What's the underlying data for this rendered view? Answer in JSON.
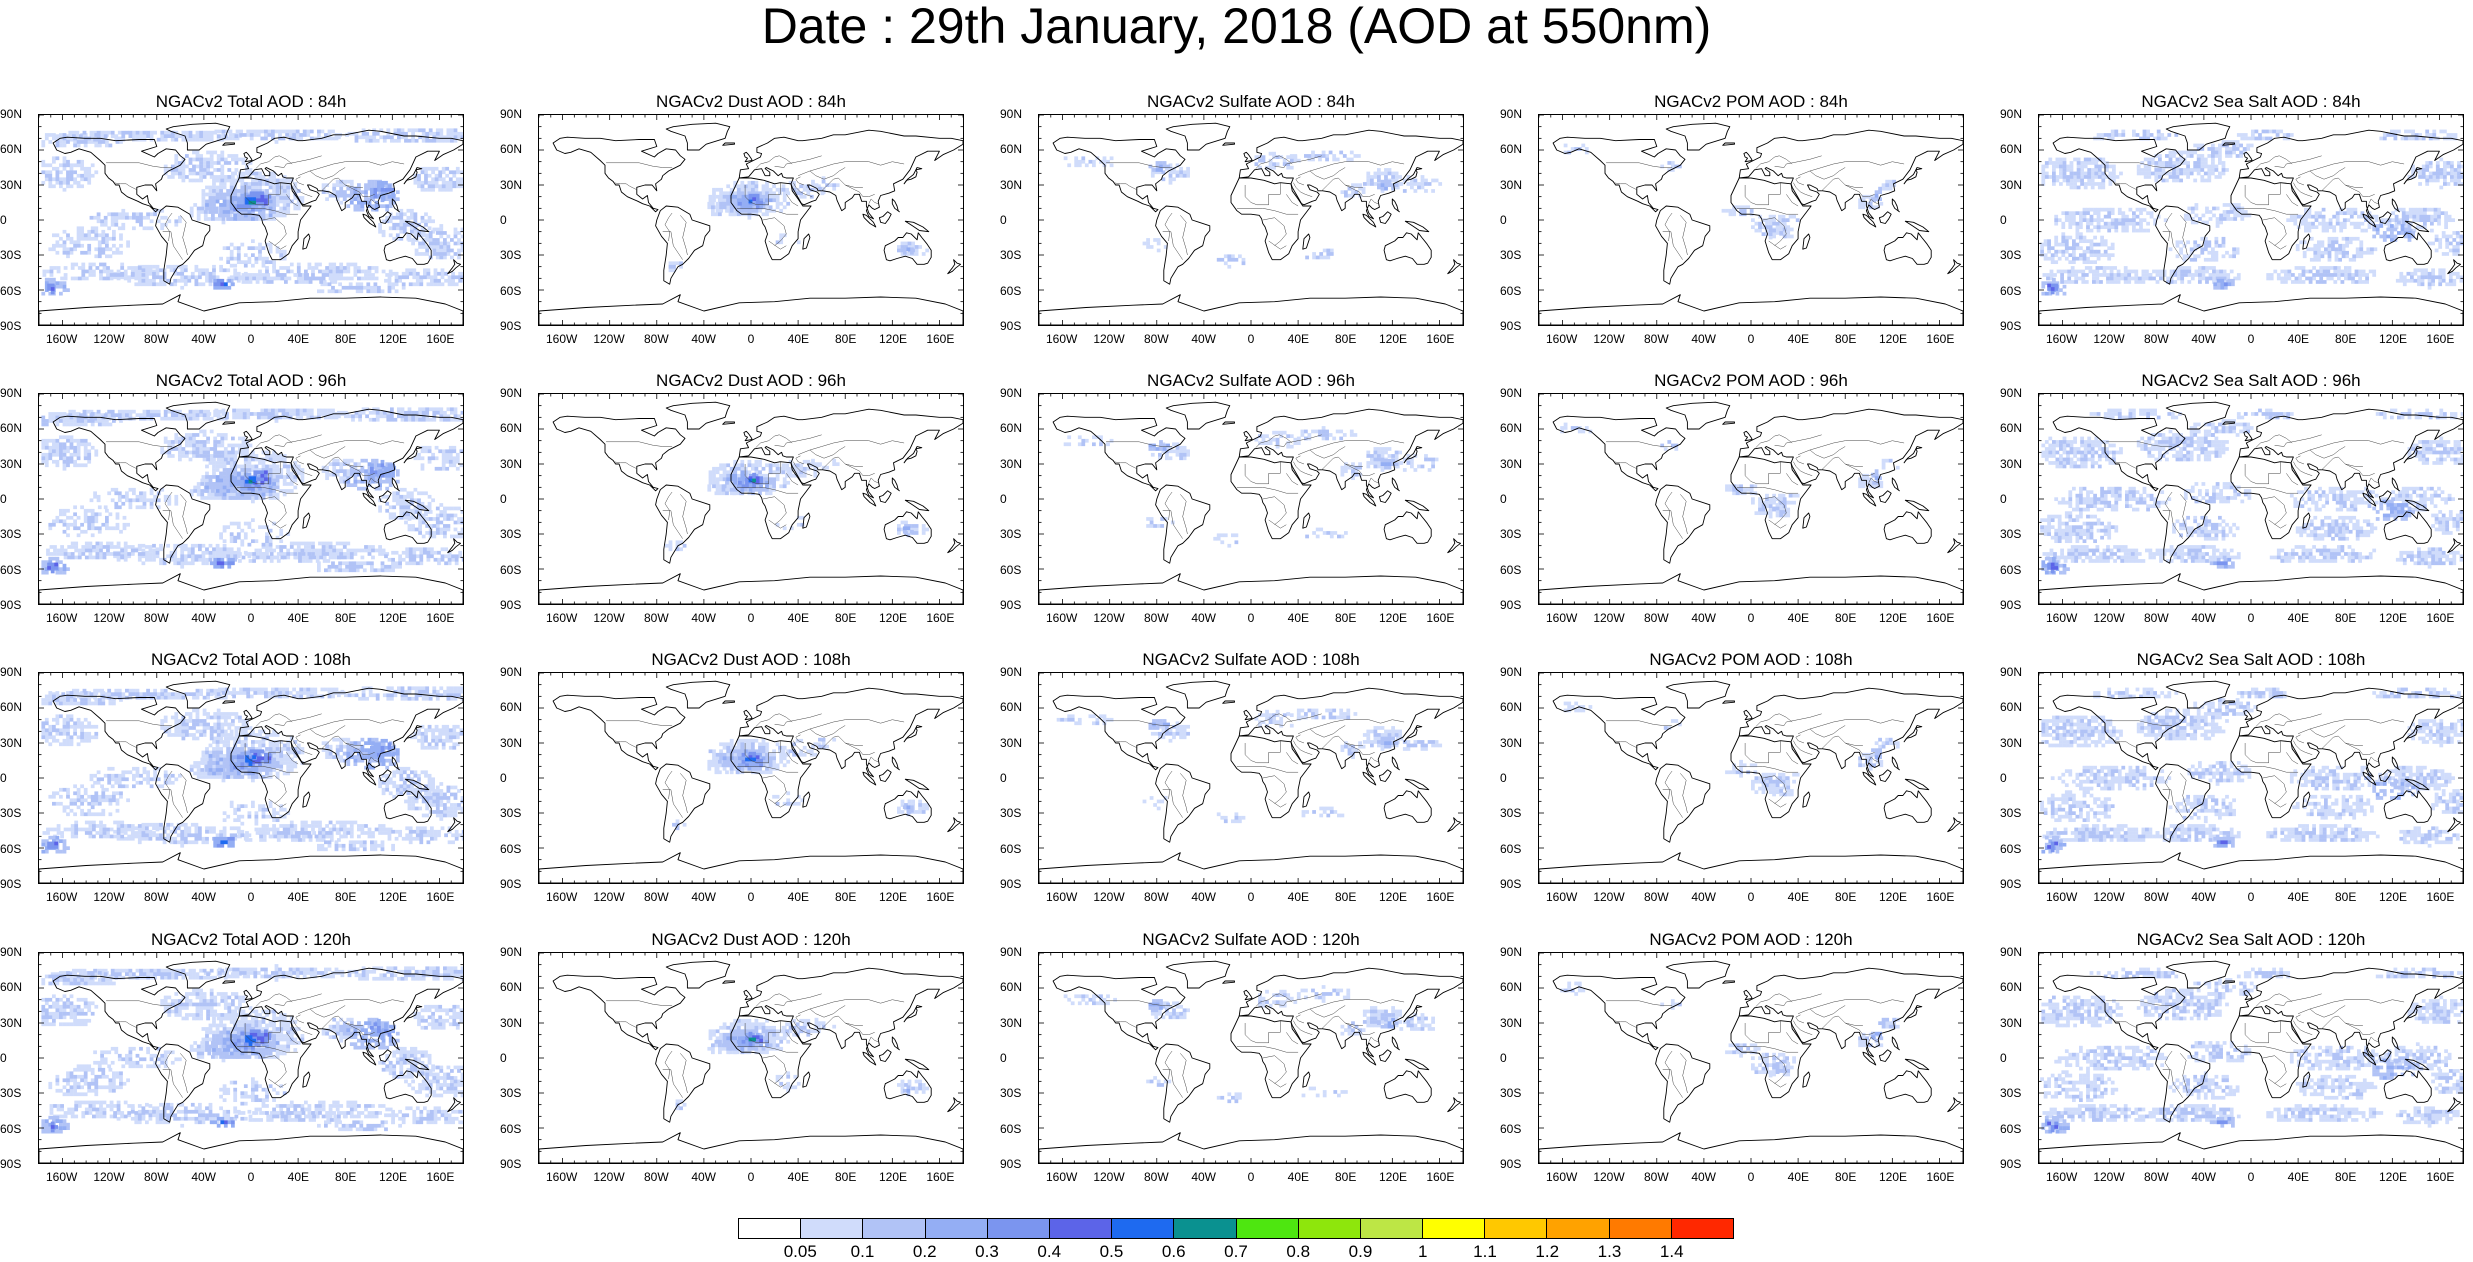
{
  "title": "Date : 29th January, 2018 (AOD at 550nm)",
  "lat_labels": [
    "90N",
    "60N",
    "30N",
    "0",
    "30S",
    "60S",
    "90S"
  ],
  "lon_labels": [
    "160W",
    "120W",
    "80W",
    "40W",
    "0",
    "40E",
    "80E",
    "120E",
    "160E"
  ],
  "panels": [
    {
      "title": "NGACv2 Total AOD : 84h",
      "species": "total",
      "forecast_hour": 84
    },
    {
      "title": "NGACv2 Dust AOD : 84h",
      "species": "dust",
      "forecast_hour": 84
    },
    {
      "title": "NGACv2 Sulfate AOD : 84h",
      "species": "sulfate",
      "forecast_hour": 84
    },
    {
      "title": "NGACv2 POM AOD : 84h",
      "species": "pom",
      "forecast_hour": 84
    },
    {
      "title": "NGACv2 Sea Salt AOD : 84h",
      "species": "seasalt",
      "forecast_hour": 84
    },
    {
      "title": "NGACv2 Total AOD : 96h",
      "species": "total",
      "forecast_hour": 96
    },
    {
      "title": "NGACv2 Dust AOD : 96h",
      "species": "dust",
      "forecast_hour": 96
    },
    {
      "title": "NGACv2 Sulfate AOD : 96h",
      "species": "sulfate",
      "forecast_hour": 96
    },
    {
      "title": "NGACv2 POM AOD : 96h",
      "species": "pom",
      "forecast_hour": 96
    },
    {
      "title": "NGACv2 Sea Salt AOD : 96h",
      "species": "seasalt",
      "forecast_hour": 96
    },
    {
      "title": "NGACv2 Total AOD : 108h",
      "species": "total",
      "forecast_hour": 108
    },
    {
      "title": "NGACv2 Dust AOD : 108h",
      "species": "dust",
      "forecast_hour": 108
    },
    {
      "title": "NGACv2 Sulfate AOD : 108h",
      "species": "sulfate",
      "forecast_hour": 108
    },
    {
      "title": "NGACv2 POM AOD : 108h",
      "species": "pom",
      "forecast_hour": 108
    },
    {
      "title": "NGACv2 Sea Salt AOD : 108h",
      "species": "seasalt",
      "forecast_hour": 108
    },
    {
      "title": "NGACv2 Total AOD : 120h",
      "species": "total",
      "forecast_hour": 120
    },
    {
      "title": "NGACv2 Dust AOD : 120h",
      "species": "dust",
      "forecast_hour": 120
    },
    {
      "title": "NGACv2 Sulfate AOD : 120h",
      "species": "sulfate",
      "forecast_hour": 120
    },
    {
      "title": "NGACv2 POM AOD : 120h",
      "species": "pom",
      "forecast_hour": 120
    },
    {
      "title": "NGACv2 Sea Salt  AOD : 120h",
      "species": "seasalt",
      "forecast_hour": 120
    }
  ],
  "colorbar": {
    "labels": [
      "0.05",
      "0.1",
      "0.2",
      "0.3",
      "0.4",
      "0.5",
      "0.6",
      "0.7",
      "0.8",
      "0.9",
      "1",
      "1.1",
      "1.2",
      "1.3",
      "1.4"
    ],
    "colors": [
      "#ffffff",
      "#d0dcfb",
      "#b1c3f6",
      "#94aef4",
      "#7b95ef",
      "#5c64e8",
      "#1e6af0",
      "#0a9190",
      "#4ee610",
      "#8ee60c",
      "#bde645",
      "#ffff00",
      "#ffc800",
      "#ffa200",
      "#ff7a00",
      "#ff2800"
    ]
  },
  "map_colors": {
    "coast": "#000000",
    "border": "#444444"
  }
}
